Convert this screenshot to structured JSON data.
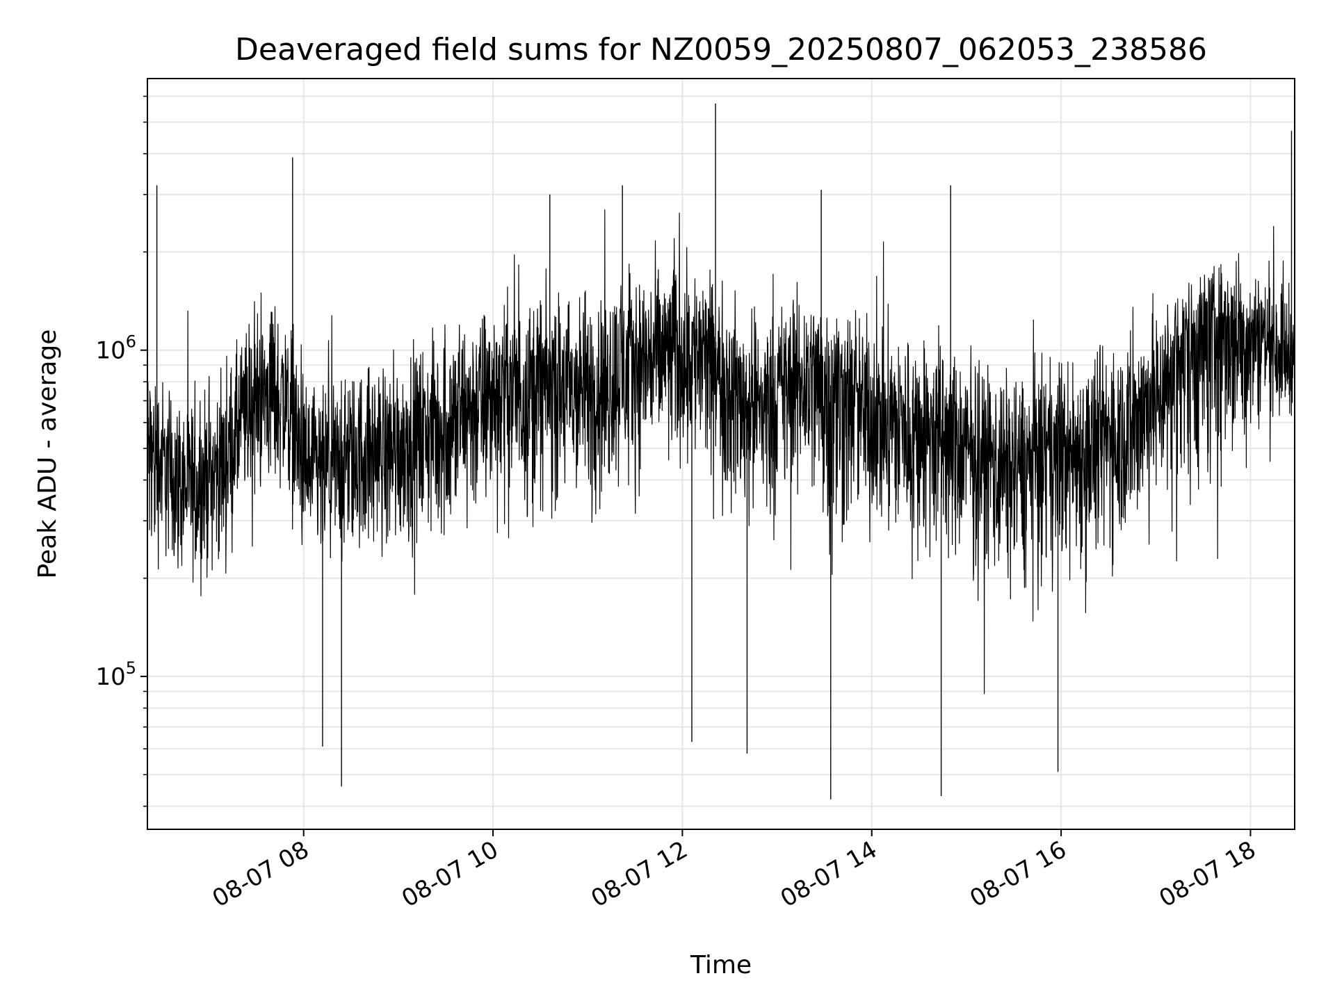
{
  "chart_data": {
    "type": "line",
    "title": "Deaveraged field sums for NZ0059_20250807_062053_238586",
    "xlabel": "Time",
    "ylabel": "Peak ADU - average",
    "yscale": "log",
    "ylim": [
      34000,
      6800000
    ],
    "xlim": [
      "2025-08-07 06:21",
      "2025-08-07 18:28"
    ],
    "x_ticks": [
      {
        "t": "2025-08-07 08:00",
        "label": "08-07 08"
      },
      {
        "t": "2025-08-07 10:00",
        "label": "08-07 10"
      },
      {
        "t": "2025-08-07 12:00",
        "label": "08-07 12"
      },
      {
        "t": "2025-08-07 14:00",
        "label": "08-07 14"
      },
      {
        "t": "2025-08-07 16:00",
        "label": "08-07 16"
      },
      {
        "t": "2025-08-07 18:00",
        "label": "08-07 18"
      }
    ],
    "y_ticks": [
      {
        "value": 100000,
        "base": "10",
        "exp": "5"
      },
      {
        "value": 1000000,
        "base": "10",
        "exp": "6"
      }
    ],
    "grid": true,
    "line_color": "#000000",
    "series": [
      {
        "x": [
          "2025-08-07 06:21",
          "2025-08-07 06:30",
          "2025-08-07 06:40",
          "2025-08-07 06:50",
          "2025-08-07 07:00",
          "2025-08-07 07:10",
          "2025-08-07 07:20",
          "2025-08-07 07:30",
          "2025-08-07 07:40",
          "2025-08-07 07:50",
          "2025-08-07 08:00",
          "2025-08-07 08:10",
          "2025-08-07 08:20",
          "2025-08-07 08:30",
          "2025-08-07 08:40",
          "2025-08-07 08:50",
          "2025-08-07 09:00",
          "2025-08-07 09:10",
          "2025-08-07 09:20",
          "2025-08-07 09:30",
          "2025-08-07 09:40",
          "2025-08-07 09:50",
          "2025-08-07 10:00",
          "2025-08-07 10:10",
          "2025-08-07 10:20",
          "2025-08-07 10:30",
          "2025-08-07 10:40",
          "2025-08-07 10:50",
          "2025-08-07 11:00",
          "2025-08-07 11:10",
          "2025-08-07 11:20",
          "2025-08-07 11:30",
          "2025-08-07 11:40",
          "2025-08-07 11:50",
          "2025-08-07 12:00",
          "2025-08-07 12:10",
          "2025-08-07 12:20",
          "2025-08-07 12:30",
          "2025-08-07 12:40",
          "2025-08-07 12:50",
          "2025-08-07 13:00",
          "2025-08-07 13:10",
          "2025-08-07 13:20",
          "2025-08-07 13:30",
          "2025-08-07 13:40",
          "2025-08-07 13:50",
          "2025-08-07 14:00",
          "2025-08-07 14:10",
          "2025-08-07 14:20",
          "2025-08-07 14:30",
          "2025-08-07 14:40",
          "2025-08-07 14:50",
          "2025-08-07 15:00",
          "2025-08-07 15:10",
          "2025-08-07 15:20",
          "2025-08-07 15:30",
          "2025-08-07 15:40",
          "2025-08-07 15:50",
          "2025-08-07 16:00",
          "2025-08-07 16:10",
          "2025-08-07 16:20",
          "2025-08-07 16:30",
          "2025-08-07 16:40",
          "2025-08-07 16:50",
          "2025-08-07 17:00",
          "2025-08-07 17:10",
          "2025-08-07 17:20",
          "2025-08-07 17:30",
          "2025-08-07 17:40",
          "2025-08-07 17:50",
          "2025-08-07 18:00",
          "2025-08-07 18:10",
          "2025-08-07 18:20",
          "2025-08-07 18:28"
        ],
        "y": [
          500000,
          450000,
          400000,
          380000,
          420000,
          450000,
          600000,
          700000,
          750000,
          680000,
          450000,
          420000,
          450000,
          480000,
          500000,
          500000,
          520000,
          550000,
          580000,
          600000,
          650000,
          700000,
          750000,
          780000,
          780000,
          800000,
          780000,
          750000,
          780000,
          820000,
          900000,
          950000,
          980000,
          1000000,
          1050000,
          1000000,
          900000,
          800000,
          700000,
          700000,
          750000,
          800000,
          850000,
          800000,
          750000,
          700000,
          650000,
          620000,
          600000,
          580000,
          550000,
          520000,
          500000,
          480000,
          460000,
          450000,
          460000,
          480000,
          500000,
          500000,
          520000,
          550000,
          600000,
          650000,
          750000,
          900000,
          1100000,
          1200000,
          1250000,
          1200000,
          1150000,
          1100000,
          1000000,
          950000
        ],
        "spread_low": [
          0.25,
          0.4,
          0.4,
          0.4,
          0.4,
          0.4,
          0.4,
          0.4,
          0.4,
          0.4,
          0.35,
          0.35,
          0.35,
          0.35,
          0.35,
          0.35,
          0.35,
          0.35,
          0.35,
          0.3,
          0.3,
          0.3,
          0.3,
          0.3,
          0.3,
          0.3,
          0.3,
          0.3,
          0.3,
          0.3,
          0.3,
          0.3,
          0.3,
          0.3,
          0.3,
          0.3,
          0.3,
          0.3,
          0.3,
          0.3,
          0.3,
          0.3,
          0.3,
          0.2,
          0.2,
          0.3,
          0.3,
          0.3,
          0.3,
          0.3,
          0.3,
          0.3,
          0.3,
          0.3,
          0.3,
          0.3,
          0.3,
          0.3,
          0.3,
          0.3,
          0.3,
          0.3,
          0.3,
          0.3,
          0.3,
          0.2,
          0.2,
          0.2,
          0.2,
          0.25,
          0.3,
          0.5,
          0.5,
          0.6
        ],
        "spread_high": [
          2.5,
          2.4,
          2.3,
          2.3,
          2.2,
          2.2,
          2.3,
          2.4,
          2.5,
          2.5,
          2.3,
          2.2,
          2.2,
          2.2,
          2.3,
          2.3,
          2.3,
          2.3,
          2.3,
          2.4,
          2.4,
          2.4,
          2.4,
          2.4,
          2.4,
          2.4,
          2.4,
          2.4,
          2.4,
          2.4,
          2.3,
          2.3,
          2.3,
          2.3,
          2.3,
          2.3,
          2.3,
          2.3,
          2.3,
          2.3,
          2.3,
          2.3,
          2.3,
          2.4,
          2.4,
          2.4,
          2.4,
          2.4,
          2.4,
          2.4,
          2.4,
          2.4,
          2.4,
          2.4,
          2.4,
          2.4,
          2.4,
          2.4,
          2.4,
          2.4,
          2.4,
          2.4,
          2.4,
          2.4,
          2.2,
          2.0,
          1.8,
          1.7,
          1.7,
          1.7,
          1.8,
          1.9,
          2.0,
          2.0
        ]
      }
    ],
    "spikes": [
      {
        "t": "2025-08-07 06:27",
        "y": 3200000
      },
      {
        "t": "2025-08-07 07:53",
        "y": 3900000
      },
      {
        "t": "2025-08-07 12:21",
        "y": 5700000
      },
      {
        "t": "2025-08-07 14:50",
        "y": 3200000
      },
      {
        "t": "2025-08-07 18:26",
        "y": 4700000
      },
      {
        "t": "2025-08-07 10:36",
        "y": 3000000
      },
      {
        "t": "2025-08-07 11:22",
        "y": 3200000
      },
      {
        "t": "2025-08-07 13:28",
        "y": 3100000
      },
      {
        "t": "2025-08-07 08:24",
        "y": 46000
      },
      {
        "t": "2025-08-07 13:34",
        "y": 42000
      },
      {
        "t": "2025-08-07 14:44",
        "y": 43000
      },
      {
        "t": "2025-08-07 12:06",
        "y": 63000
      },
      {
        "t": "2025-08-07 12:41",
        "y": 58000
      },
      {
        "t": "2025-08-07 08:12",
        "y": 61000
      },
      {
        "t": "2025-08-07 15:58",
        "y": 51000
      }
    ]
  }
}
